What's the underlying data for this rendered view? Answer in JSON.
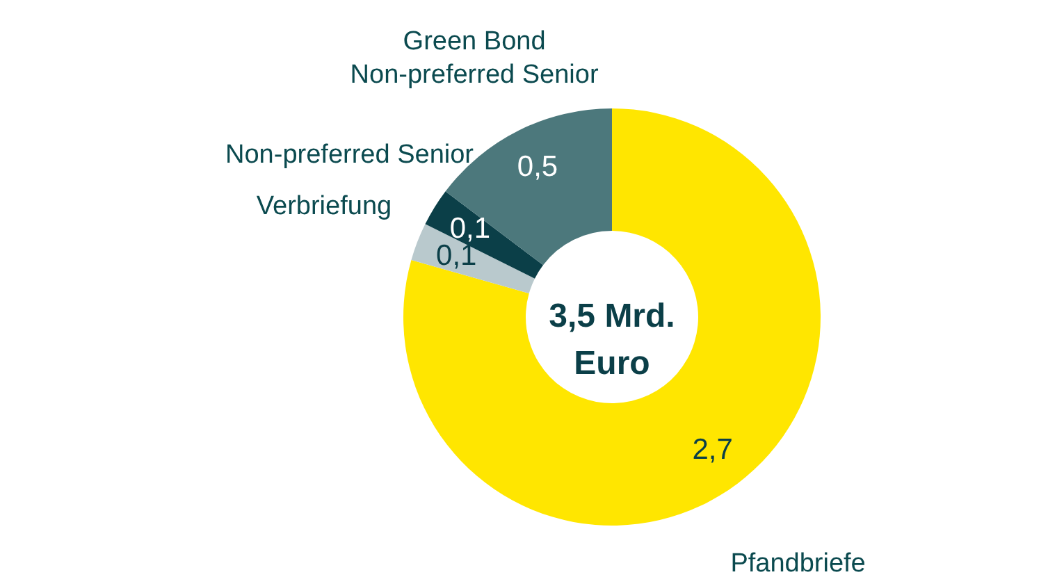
{
  "chart_data": {
    "type": "donut",
    "categories": [
      "Pfandbriefe",
      "Verbriefung",
      "Non-preferred Senior",
      "Green Bond\nNon-preferred Senior"
    ],
    "values": [
      2.7,
      0.1,
      0.1,
      0.5
    ],
    "value_labels": [
      "2,7",
      "0,1",
      "0,1",
      "0,5"
    ],
    "colors": [
      "#ffe600",
      "#b9c9cd",
      "#0b3f48",
      "#4c787c"
    ],
    "annotations": [
      "3,5 Mrd.\nEuro"
    ]
  }
}
